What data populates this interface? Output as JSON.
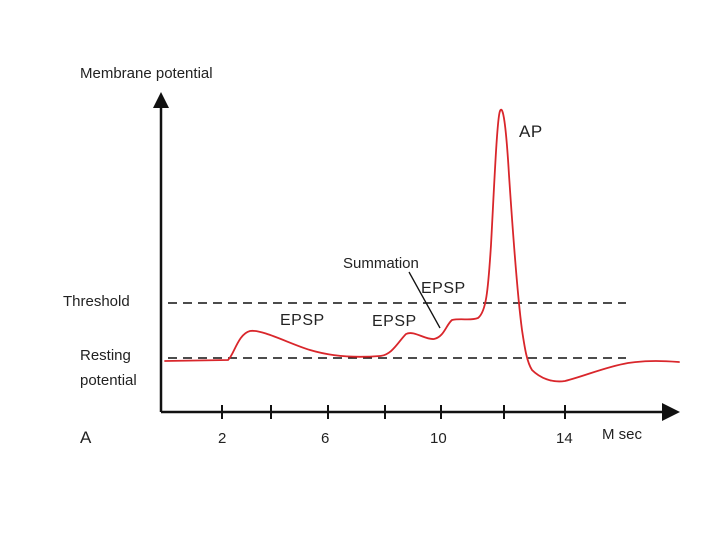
{
  "y_axis_label": "Membrane potential",
  "threshold_label": "Threshold",
  "resting_label_line1": "Resting",
  "resting_label_line2": "potential",
  "panel_letter": "A",
  "x_unit_label": "M sec",
  "x_ticks": [
    2,
    6,
    10,
    14
  ],
  "annotations": {
    "epsp_1": "EPSP",
    "epsp_2": "EPSP",
    "epsp_3": "EPSP",
    "summation": "Summation",
    "action_potential": "AP"
  },
  "colors": {
    "trace": "#d9262b",
    "axis": "#111111",
    "dashed": "#111111"
  }
}
